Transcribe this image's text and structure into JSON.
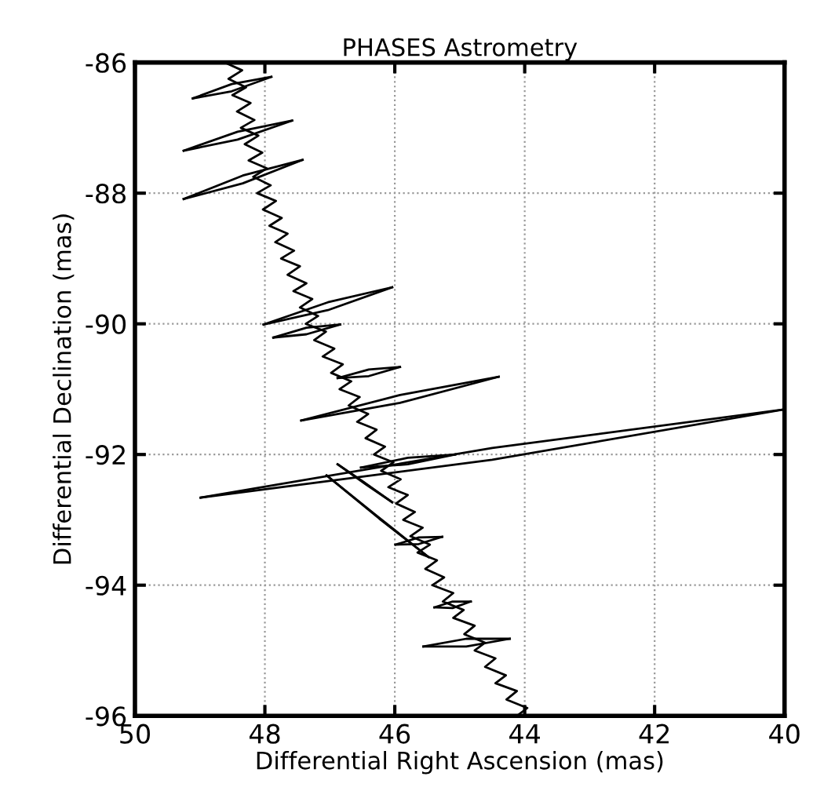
{
  "chart_data": {
    "type": "line",
    "title": "PHASES Astrometry",
    "xlabel": "Differential Right Ascension (mas)",
    "ylabel": "Differential Declination (mas)",
    "xlim": [
      50,
      40
    ],
    "ylim": [
      -96,
      -86
    ],
    "xticks": [
      50,
      48,
      46,
      44,
      42,
      40
    ],
    "yticks": [
      -96,
      -94,
      -92,
      -90,
      -88,
      -86
    ],
    "grid": true,
    "line_style": "solid",
    "marker": "none",
    "series": [
      {
        "color": "#000000",
        "x": [
          48.62,
          48.35,
          48.56,
          48.29,
          48.5,
          48.22,
          48.43,
          48.16,
          48.37,
          48.1,
          48.31,
          48.04,
          48.25,
          47.97,
          48.18,
          47.91,
          48.12,
          47.83,
          48.03,
          47.74,
          47.93,
          47.65,
          47.84,
          47.55,
          47.75,
          47.46,
          47.65,
          47.36,
          47.56,
          47.27,
          47.46,
          47.18,
          47.37,
          47.06,
          47.24,
          46.93,
          47.11,
          46.8,
          46.98,
          46.67,
          46.85,
          46.54,
          46.71,
          46.41,
          46.58,
          46.28,
          46.45,
          46.15,
          46.32,
          46.02,
          46.21,
          45.91,
          46.1,
          45.8,
          45.98,
          45.69,
          45.87,
          45.57,
          45.76,
          45.46,
          45.65,
          45.35,
          45.53,
          45.24,
          45.42,
          45.1,
          45.26,
          44.94,
          45.1,
          44.77,
          44.93,
          44.61,
          44.77,
          44.45,
          44.61,
          44.29,
          44.45,
          44.12,
          44.28,
          43.96,
          44.12
        ],
        "values": [
          -86.0,
          -86.12,
          -86.25,
          -86.38,
          -86.5,
          -86.62,
          -86.75,
          -86.88,
          -87.0,
          -87.12,
          -87.25,
          -87.38,
          -87.5,
          -87.62,
          -87.75,
          -87.88,
          -88.0,
          -88.12,
          -88.25,
          -88.38,
          -88.5,
          -88.62,
          -88.75,
          -88.88,
          -89.0,
          -89.12,
          -89.25,
          -89.38,
          -89.5,
          -89.62,
          -89.75,
          -89.88,
          -90.0,
          -90.12,
          -90.25,
          -90.38,
          -90.5,
          -90.62,
          -90.75,
          -90.88,
          -91.0,
          -91.12,
          -91.25,
          -91.38,
          -91.5,
          -91.62,
          -91.75,
          -91.88,
          -92.0,
          -92.12,
          -92.25,
          -92.38,
          -92.5,
          -92.62,
          -92.75,
          -92.88,
          -93.0,
          -93.12,
          -93.25,
          -93.38,
          -93.5,
          -93.62,
          -93.75,
          -93.88,
          -94.0,
          -94.12,
          -94.25,
          -94.38,
          -94.5,
          -94.62,
          -94.75,
          -94.88,
          -95.0,
          -95.12,
          -95.25,
          -95.38,
          -95.5,
          -95.62,
          -95.75,
          -95.88,
          -96.0
        ]
      },
      {
        "color": "#000000",
        "x": [
          49.11,
          48.51,
          47.9
        ],
        "values": [
          -86.55,
          -86.33,
          -86.22
        ]
      },
      {
        "color": "#000000",
        "x": [
          49.11,
          48.51,
          47.9
        ],
        "values": [
          -86.55,
          -86.44,
          -86.22
        ]
      },
      {
        "color": "#000000",
        "x": [
          49.25,
          48.42,
          47.58
        ],
        "values": [
          -87.35,
          -87.06,
          -86.89
        ]
      },
      {
        "color": "#000000",
        "x": [
          49.25,
          48.42,
          47.58
        ],
        "values": [
          -87.35,
          -87.18,
          -86.89
        ]
      },
      {
        "color": "#000000",
        "x": [
          49.25,
          48.34,
          47.42
        ],
        "values": [
          -88.09,
          -87.73,
          -87.49
        ]
      },
      {
        "color": "#000000",
        "x": [
          49.25,
          48.34,
          47.42
        ],
        "values": [
          -88.09,
          -87.85,
          -87.49
        ]
      },
      {
        "color": "#000000",
        "x": [
          48.02,
          47.03,
          46.04
        ],
        "values": [
          -90.01,
          -89.67,
          -89.44
        ]
      },
      {
        "color": "#000000",
        "x": [
          48.02,
          47.03,
          46.04
        ],
        "values": [
          -90.01,
          -89.79,
          -89.44
        ]
      },
      {
        "color": "#000000",
        "x": [
          47.87,
          47.36,
          46.84
        ],
        "values": [
          -90.21,
          -90.06,
          -90.01
        ]
      },
      {
        "color": "#000000",
        "x": [
          47.87,
          47.36,
          46.84
        ],
        "values": [
          -90.21,
          -90.16,
          -90.01
        ]
      },
      {
        "color": "#000000",
        "x": [
          46.88,
          46.4,
          45.92
        ],
        "values": [
          -90.83,
          -90.7,
          -90.66
        ]
      },
      {
        "color": "#000000",
        "x": [
          46.88,
          46.4,
          45.92
        ],
        "values": [
          -90.83,
          -90.8,
          -90.66
        ]
      },
      {
        "color": "#000000",
        "x": [
          47.44,
          45.92,
          44.4
        ],
        "values": [
          -91.48,
          -91.09,
          -90.81
        ]
      },
      {
        "color": "#000000",
        "x": [
          47.44,
          45.92,
          44.4
        ],
        "values": [
          -91.48,
          -91.21,
          -90.81
        ]
      },
      {
        "color": "#000000",
        "x": [
          48.99,
          44.5,
          40.0
        ],
        "values": [
          -92.66,
          -91.9,
          -91.31
        ]
      },
      {
        "color": "#000000",
        "x": [
          48.99,
          44.5,
          40.0
        ],
        "values": [
          -92.66,
          -92.08,
          -91.31
        ]
      },
      {
        "color": "#000000",
        "x": [
          46.52,
          45.8,
          45.07
        ],
        "values": [
          -92.2,
          -92.05,
          -92.0
        ]
      },
      {
        "color": "#000000",
        "x": [
          46.52,
          45.8,
          45.07
        ],
        "values": [
          -92.2,
          -92.15,
          -92.0
        ]
      },
      {
        "color": "#000000",
        "x": [
          47.05,
          46.3,
          45.48
        ],
        "values": [
          -92.32,
          -92.92,
          -93.57
        ]
      },
      {
        "color": "#000000",
        "x": [
          47.05,
          46.24,
          45.48
        ],
        "values": [
          -92.32,
          -92.98,
          -93.57
        ]
      },
      {
        "color": "#000000",
        "x": [
          46.88,
          46.48,
          46.04
        ],
        "values": [
          -92.15,
          -92.42,
          -92.73
        ]
      },
      {
        "color": "#000000",
        "x": [
          46.88,
          46.44,
          46.04
        ],
        "values": [
          -92.15,
          -92.46,
          -92.73
        ]
      },
      {
        "color": "#000000",
        "x": [
          45.99,
          45.63,
          45.27
        ],
        "values": [
          -93.38,
          -93.27,
          -93.26
        ]
      },
      {
        "color": "#000000",
        "x": [
          45.99,
          45.63,
          45.27
        ],
        "values": [
          -93.38,
          -93.37,
          -93.26
        ]
      },
      {
        "color": "#000000",
        "x": [
          45.39,
          45.11,
          44.83
        ],
        "values": [
          -94.34,
          -94.25,
          -94.25
        ]
      },
      {
        "color": "#000000",
        "x": [
          45.39,
          45.11,
          44.83
        ],
        "values": [
          -94.34,
          -94.35,
          -94.25
        ]
      },
      {
        "color": "#000000",
        "x": [
          45.56,
          44.9,
          44.23
        ],
        "values": [
          -94.94,
          -94.82,
          -94.82
        ]
      },
      {
        "color": "#000000",
        "x": [
          45.56,
          44.9,
          44.23
        ],
        "values": [
          -94.94,
          -94.94,
          -94.82
        ]
      }
    ]
  }
}
